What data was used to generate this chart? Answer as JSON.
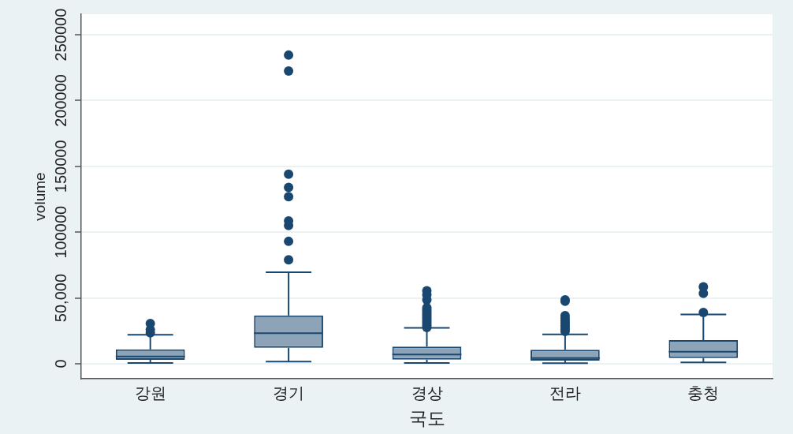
{
  "chart_data": {
    "type": "box",
    "categories": [
      "강원",
      "경기",
      "경상",
      "전라",
      "충청"
    ],
    "xlabel": "국도",
    "ylabel": "volume",
    "ylim": [
      -11400,
      265600
    ],
    "yticks": [
      0,
      {
        "value": 50000,
        "label": "50,000"
      },
      100000,
      150000,
      200000,
      250000
    ],
    "grid": "y",
    "marker": "circle",
    "series": [
      {
        "color": "#1a476f",
        "boxes": [
          {
            "low": 600,
            "q1": 3000,
            "median": 5600,
            "q3": 11000,
            "high": 22000,
            "outliers": [
              23500,
              26000,
              30500
            ]
          },
          {
            "low": 1600,
            "q1": 12200,
            "median": 23300,
            "q3": 36700,
            "high": 69500,
            "outliers": [
              79000,
              93000,
              105000,
              108500,
              127000,
              134000,
              144000,
              222500,
              234500
            ]
          },
          {
            "low": 600,
            "q1": 3200,
            "median": 7000,
            "q3": 13000,
            "high": 27200,
            "outliers": [
              27500,
              29000,
              30500,
              32000,
              33500,
              35000,
              36500,
              38000,
              39500,
              41000,
              42500,
              48500,
              52500,
              55500
            ]
          },
          {
            "low": 400,
            "q1": 2400,
            "median": 4400,
            "q3": 10600,
            "high": 22400,
            "outliers": [
              24500,
              26000,
              27500,
              29000,
              31000,
              32500,
              34500,
              36500,
              47500,
              48500
            ]
          },
          {
            "low": 1000,
            "q1": 4400,
            "median": 9200,
            "q3": 18000,
            "high": 37400,
            "outliers": [
              39000,
              53500,
              58500
            ]
          }
        ]
      }
    ]
  }
}
